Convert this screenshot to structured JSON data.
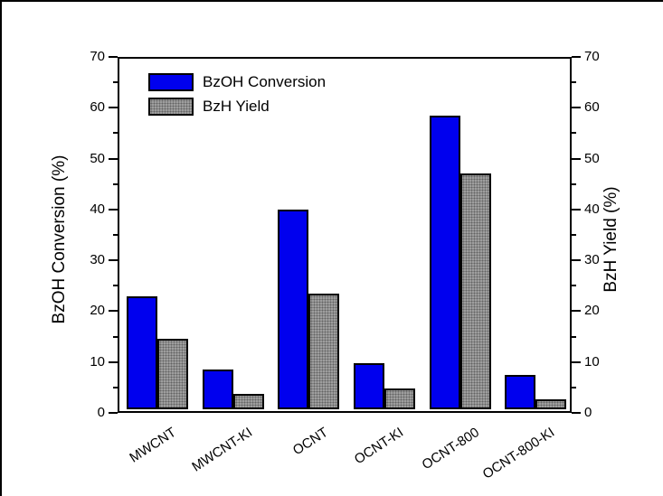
{
  "chart_data": {
    "type": "bar",
    "title": "",
    "categories": [
      "MWCNT",
      "MWCNT-KI",
      "OCNT",
      "OCNT-KI",
      "OCNT-800",
      "OCNT-800-KI"
    ],
    "series": [
      {
        "name": "BzOH Conversion",
        "color": "#0000ee",
        "fill": "solid",
        "values": [
          22.2,
          7.8,
          39.2,
          9.1,
          57.7,
          6.8
        ]
      },
      {
        "name": "BzH Yield",
        "color": "#9e9e9e",
        "fill": "dots",
        "values": [
          13.9,
          3.0,
          22.8,
          4.1,
          46.3,
          2.0
        ]
      }
    ],
    "left_axis": {
      "label": "BzOH Conversion (%)",
      "min": 0,
      "max": 70,
      "major_ticks": [
        0,
        10,
        20,
        30,
        40,
        50,
        60,
        70
      ],
      "minor_step": 5
    },
    "right_axis": {
      "label": "BzH Yield (%)",
      "min": 0,
      "max": 70,
      "major_ticks": [
        0,
        10,
        20,
        30,
        40,
        50,
        60,
        70
      ],
      "minor_step": 5
    },
    "legend": {
      "position": "inside-top-left",
      "items": [
        "BzOH Conversion",
        "BzH Yield"
      ]
    },
    "grid": "off",
    "frame": "on"
  }
}
